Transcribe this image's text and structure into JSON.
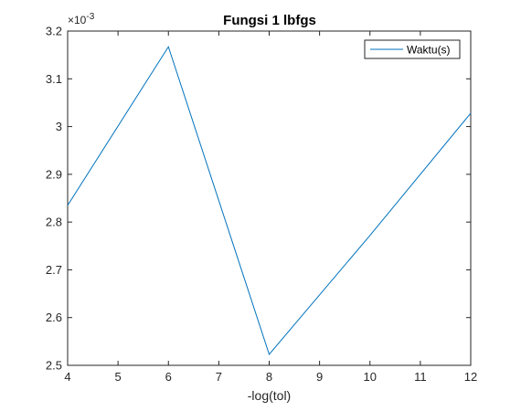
{
  "chart_data": {
    "type": "line",
    "title": "Fungsi 1 lbfgs",
    "xlabel": "-log(tol)",
    "ylabel": "",
    "xlim": [
      4,
      12
    ],
    "ylim": [
      2.5,
      3.2
    ],
    "y_multiplier": "×10",
    "y_multiplier_exp": "-3",
    "x_ticks": [
      "4",
      "5",
      "6",
      "7",
      "8",
      "9",
      "10",
      "11",
      "12"
    ],
    "y_ticks": [
      "2.5",
      "2.6",
      "2.7",
      "2.8",
      "2.9",
      "3",
      "3.1",
      "3.2"
    ],
    "grid": false,
    "legend_position": "top-right",
    "series": [
      {
        "name": "Waktu(s)",
        "color": "#0072BD",
        "x": [
          4,
          6,
          8,
          10,
          12
        ],
        "y": [
          2.835,
          3.167,
          2.523,
          2.772,
          3.028
        ]
      }
    ]
  }
}
